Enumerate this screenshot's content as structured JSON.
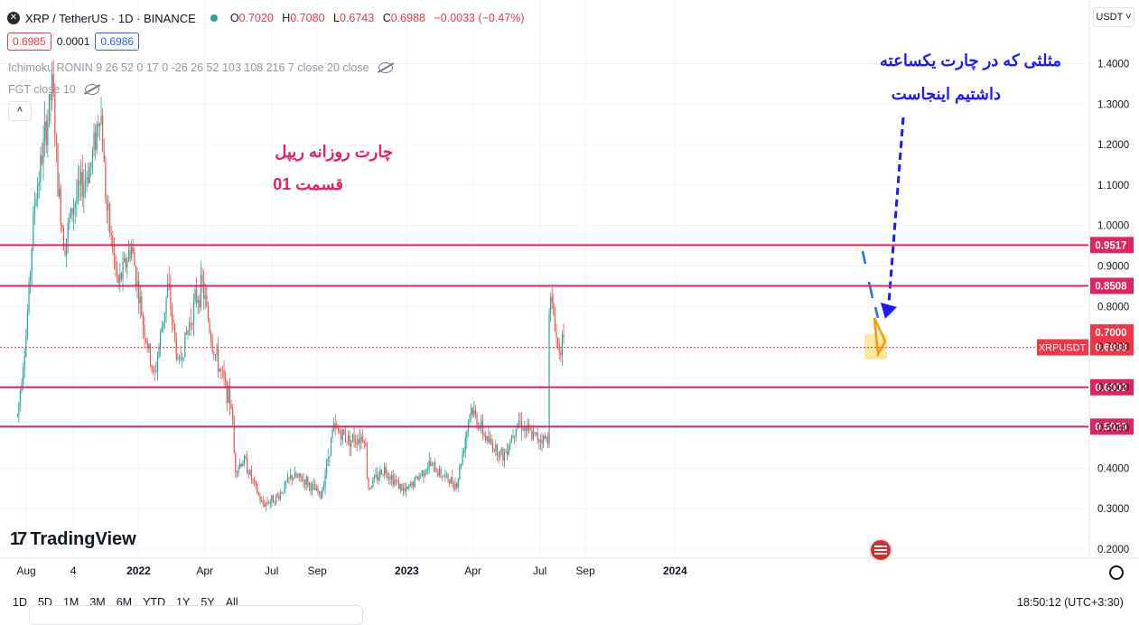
{
  "header": {
    "symbol_title": "XRP / TetherUS · 1D · BINANCE",
    "ohlc": [
      {
        "k": "O",
        "v": "0.7020"
      },
      {
        "k": "H",
        "v": "0.7080"
      },
      {
        "k": "L",
        "v": "0.6743"
      },
      {
        "k": "C",
        "v": "0.6988"
      },
      {
        "k": "",
        "v": "−0.0033 (−0.47%)"
      }
    ],
    "sell_price": "0.6985",
    "spread": "0.0001",
    "buy_price": "0.6986"
  },
  "indicators": [
    {
      "label": "Ichimoku RONIN 9 26 52 0 17 0 -26 26 52 103 108 216 7 close 20 close"
    },
    {
      "label": "FGT close 10"
    }
  ],
  "currency_button": "USDT ˅",
  "collapse_button": "˄",
  "annotations": {
    "pink_line1": "چارت روزانه ریپل",
    "pink_line2": "قسمت 01",
    "blue_line1": "مثلثی که در چارت یکساعته",
    "blue_line2": "داشتیم اینجاست"
  },
  "brand": {
    "mark": "17",
    "name": "TradingView"
  },
  "timeframes": [
    "1D",
    "5D",
    "1M",
    "3M",
    "6M",
    "YTD",
    "1Y",
    "5Y",
    "All"
  ],
  "clock": "18:50:12 (UTC+3:30)",
  "colors": {
    "up": "#26a69a",
    "down": "#ef5350",
    "level_line": "#e0245e",
    "level_label_bg": "#e0245e",
    "annotation_pink": "#e91e63",
    "annotation_blue": "#1a1aff",
    "triangle_fill": "#ffe082",
    "triangle_stroke": "#ff9800"
  },
  "chart_data": {
    "type": "candlestick",
    "symbol": "XRPUSDT",
    "interval": "1D",
    "y_axis": {
      "ticks": [
        "1.4000",
        "1.3000",
        "1.2000",
        "1.1000",
        "1.0000",
        "0.9000",
        "0.8000",
        "0.7000",
        "0.6000",
        "0.5000",
        "0.4000",
        "0.3000",
        "0.2000"
      ],
      "tick_values": [
        1.4,
        1.3,
        1.2,
        1.1,
        1.0,
        0.9,
        0.8,
        0.7,
        0.6,
        0.5,
        0.4,
        0.3,
        0.2
      ]
    },
    "x_axis": {
      "ticks": [
        {
          "label": "Aug",
          "date": "2021-08-01",
          "bold": false
        },
        {
          "label": "4",
          "date": "2021-10-04",
          "bold": false
        },
        {
          "label": "2022",
          "date": "2022-01-01",
          "bold": true
        },
        {
          "label": "Apr",
          "date": "2022-04-01",
          "bold": false
        },
        {
          "label": "Jul",
          "date": "2022-07-01",
          "bold": false
        },
        {
          "label": "Sep",
          "date": "2022-09-01",
          "bold": false
        },
        {
          "label": "2023",
          "date": "2023-01-01",
          "bold": true
        },
        {
          "label": "Apr",
          "date": "2023-04-01",
          "bold": false
        },
        {
          "label": "Jul",
          "date": "2023-07-01",
          "bold": false
        },
        {
          "label": "Sep",
          "date": "2023-09-01",
          "bold": false
        },
        {
          "label": "2024",
          "date": "2024-01-01",
          "bold": true
        }
      ]
    },
    "horizontal_levels": [
      {
        "value": 0.9517,
        "label": "0.9517"
      },
      {
        "value": 0.8508,
        "label": "0.8508"
      },
      {
        "value": 0.6002,
        "label": "0.6002"
      },
      {
        "value": 0.5029,
        "label": "0.5029"
      }
    ],
    "price_lines": [
      {
        "value": 0.7,
        "label": "0.7000",
        "color": "#f23645"
      },
      {
        "value": 0.6988,
        "label": "0.6988",
        "symbol_label": "XRPUSDT",
        "color": "#f23645"
      }
    ],
    "price_path": [
      {
        "date": "2021-07-20",
        "price": 0.53
      },
      {
        "date": "2021-08-01",
        "price": 0.73
      },
      {
        "date": "2021-08-12",
        "price": 1.05
      },
      {
        "date": "2021-08-25",
        "price": 1.2
      },
      {
        "date": "2021-09-06",
        "price": 1.35
      },
      {
        "date": "2021-09-13",
        "price": 1.1
      },
      {
        "date": "2021-09-22",
        "price": 0.95
      },
      {
        "date": "2021-10-04",
        "price": 1.05
      },
      {
        "date": "2021-10-16",
        "price": 1.1
      },
      {
        "date": "2021-10-28",
        "price": 1.15
      },
      {
        "date": "2021-11-10",
        "price": 1.3
      },
      {
        "date": "2021-11-18",
        "price": 1.05
      },
      {
        "date": "2021-12-04",
        "price": 0.85
      },
      {
        "date": "2021-12-22",
        "price": 0.95
      },
      {
        "date": "2022-01-08",
        "price": 0.75
      },
      {
        "date": "2022-01-22",
        "price": 0.62
      },
      {
        "date": "2022-02-10",
        "price": 0.85
      },
      {
        "date": "2022-02-24",
        "price": 0.65
      },
      {
        "date": "2022-03-20",
        "price": 0.82
      },
      {
        "date": "2022-03-29",
        "price": 0.85
      },
      {
        "date": "2022-04-12",
        "price": 0.7
      },
      {
        "date": "2022-05-08",
        "price": 0.55
      },
      {
        "date": "2022-05-12",
        "price": 0.4
      },
      {
        "date": "2022-05-25",
        "price": 0.42
      },
      {
        "date": "2022-06-18",
        "price": 0.31
      },
      {
        "date": "2022-07-10",
        "price": 0.33
      },
      {
        "date": "2022-07-28",
        "price": 0.38
      },
      {
        "date": "2022-08-16",
        "price": 0.37
      },
      {
        "date": "2022-09-06",
        "price": 0.33
      },
      {
        "date": "2022-09-23",
        "price": 0.5
      },
      {
        "date": "2022-10-15",
        "price": 0.47
      },
      {
        "date": "2022-11-05",
        "price": 0.48
      },
      {
        "date": "2022-11-09",
        "price": 0.35
      },
      {
        "date": "2022-12-01",
        "price": 0.4
      },
      {
        "date": "2022-12-30",
        "price": 0.34
      },
      {
        "date": "2023-01-31",
        "price": 0.41
      },
      {
        "date": "2023-02-28",
        "price": 0.37
      },
      {
        "date": "2023-03-10",
        "price": 0.36
      },
      {
        "date": "2023-03-29",
        "price": 0.55
      },
      {
        "date": "2023-04-20",
        "price": 0.47
      },
      {
        "date": "2023-05-13",
        "price": 0.43
      },
      {
        "date": "2023-06-01",
        "price": 0.52
      },
      {
        "date": "2023-06-20",
        "price": 0.48
      },
      {
        "date": "2023-07-12",
        "price": 0.47
      },
      {
        "date": "2023-07-13",
        "price": 0.8
      },
      {
        "date": "2023-07-14",
        "price": 0.82
      },
      {
        "date": "2023-07-20",
        "price": 0.78
      },
      {
        "date": "2023-07-25",
        "price": 0.7
      },
      {
        "date": "2023-07-30",
        "price": 0.71
      },
      {
        "date": "2023-08-03",
        "price": 0.6988
      }
    ]
  }
}
